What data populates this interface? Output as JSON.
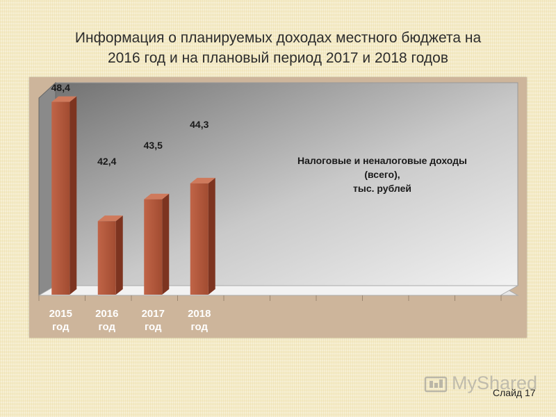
{
  "slide": {
    "title_line1": "Информация о планируемых доходах местного бюджета на",
    "title_line2": "2016  год  и на плановый  период  2017  и 2018 годов",
    "watermark": "MyShared",
    "slide_number": "Слайд 17"
  },
  "chart_data": {
    "type": "bar",
    "categories": [
      "2015\nгод",
      "2016\nгод",
      "2017\nгод",
      "2018\nгод"
    ],
    "values": [
      48.4,
      42.4,
      43.5,
      44.3
    ],
    "value_labels": [
      "48,4",
      "42,4",
      "43,5",
      "44,3"
    ],
    "series": [
      {
        "values": [
          48.4,
          42.4,
          43.5,
          44.3
        ]
      }
    ],
    "annotation": [
      "Налоговые и неналоговые доходы",
      "(всего),",
      "тыс. рублей"
    ],
    "legend": "none",
    "grid": false,
    "colors": {
      "bar": "#b5583b",
      "bar_side": "#7d3420",
      "bar_top": "#cf7a5c",
      "frame": "#cdb59b"
    }
  }
}
